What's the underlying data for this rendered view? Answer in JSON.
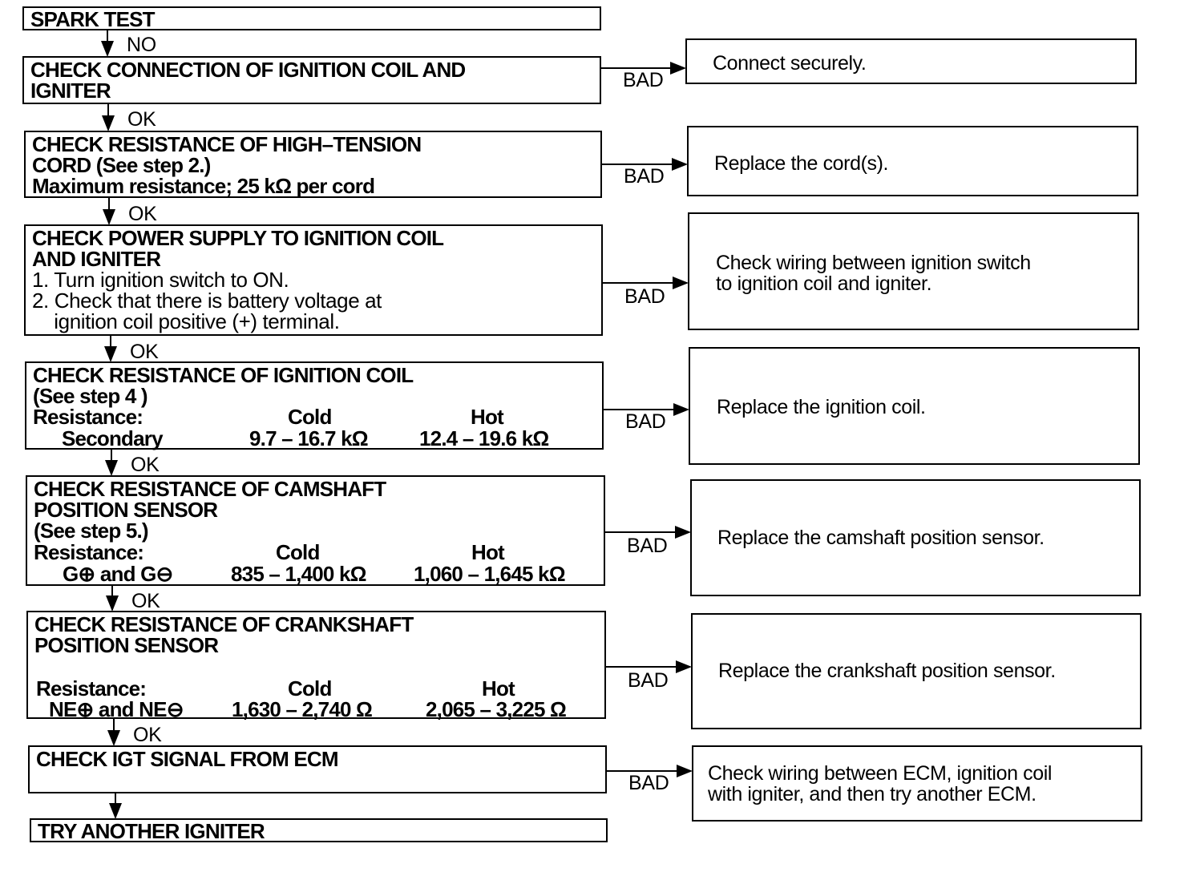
{
  "steps": [
    {
      "title": "SPARK TEST"
    },
    {
      "title_lines": [
        "CHECK CONNECTION OF IGNITION COIL AND",
        "IGNITER"
      ],
      "result": "Connect securely."
    },
    {
      "title_lines": [
        "CHECK RESISTANCE OF HIGH–TENSION",
        "CORD (See step 2.)",
        "Maximum resistance; 25 kΩ per cord"
      ],
      "result": "Replace the cord(s)."
    },
    {
      "title_lines": [
        "CHECK POWER SUPPLY TO IGNITION COIL",
        "AND IGNITER"
      ],
      "instructions": [
        "1. Turn ignition switch to ON.",
        "2. Check that there is battery voltage at",
        "    ignition coil positive (+) terminal."
      ],
      "result_lines": [
        "Check wiring between ignition switch",
        "to ignition coil and igniter."
      ]
    },
    {
      "title_lines": [
        "CHECK RESISTANCE OF IGNITION COIL",
        "(See step 4 )"
      ],
      "resistance": {
        "label": "Resistance:",
        "cold_header": "Cold",
        "hot_header": "Hot",
        "item": "Secondary",
        "cold": "9.7 – 16.7 kΩ",
        "hot": "12.4 – 19.6 kΩ"
      },
      "result": "Replace the ignition coil."
    },
    {
      "title_lines": [
        "CHECK RESISTANCE OF CAMSHAFT",
        "POSITION SENSOR",
        "(See step 5.)"
      ],
      "resistance": {
        "label": "Resistance:",
        "cold_header": "Cold",
        "hot_header": "Hot",
        "item": "G⊕ and G⊖",
        "cold": "835 – 1,400 kΩ",
        "hot": "1,060 – 1,645 kΩ"
      },
      "result": "Replace the camshaft position sensor."
    },
    {
      "title_lines": [
        "CHECK RESISTANCE OF CRANKSHAFT",
        "POSITION SENSOR"
      ],
      "resistance": {
        "label": "Resistance:",
        "cold_header": "Cold",
        "hot_header": "Hot",
        "item": "NE⊕ and NE⊖",
        "cold": "1,630 – 2,740 Ω",
        "hot": "2,065 – 3,225 Ω"
      },
      "result": "Replace the crankshaft position sensor."
    },
    {
      "title_lines": [
        "CHECK IGT SIGNAL FROM ECM"
      ],
      "result_lines": [
        "Check wiring between ECM, ignition coil",
        "with igniter, and then try another ECM."
      ]
    },
    {
      "title": "TRY ANOTHER IGNITER"
    }
  ],
  "labels": {
    "no": "NO",
    "ok": "OK",
    "bad": "BAD"
  }
}
